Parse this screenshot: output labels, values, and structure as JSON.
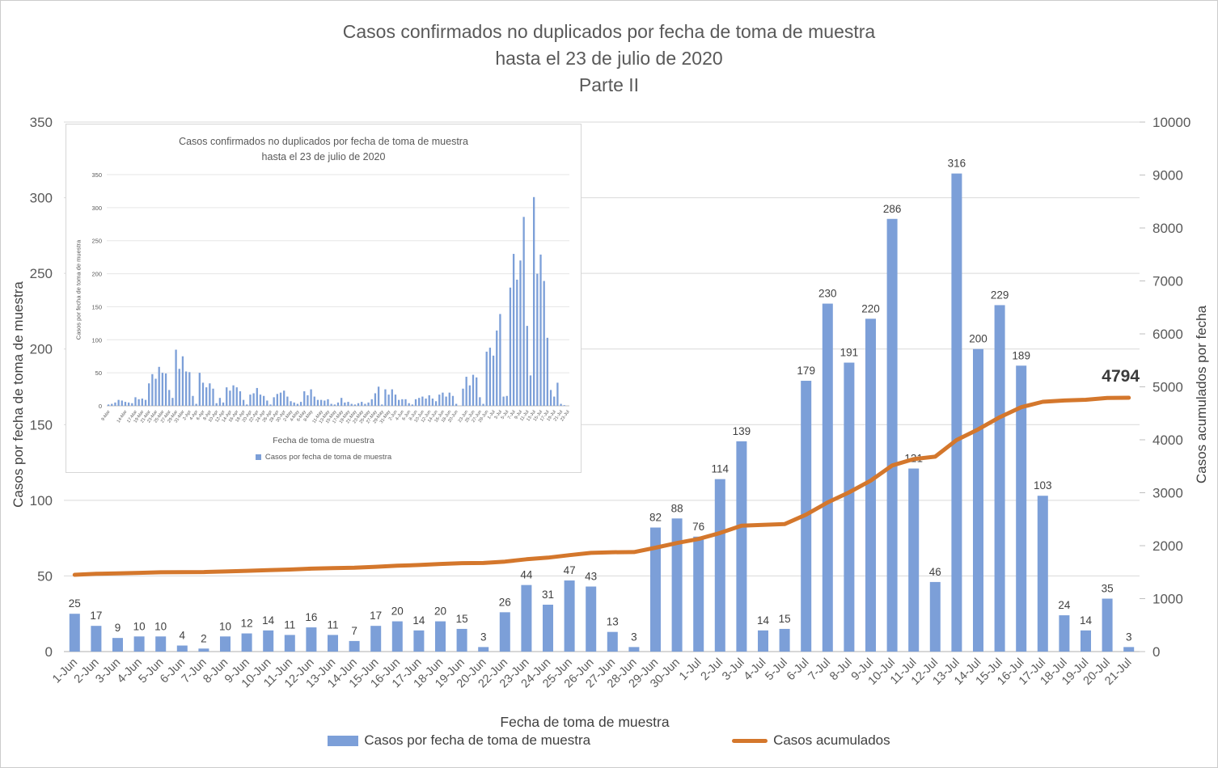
{
  "page": {
    "background": "#ffffff",
    "border_color": "#cccccc"
  },
  "colors": {
    "bar": "#7C9FD8",
    "line": "#D4772C",
    "grid": "#D9D9D9",
    "axis": "#BFBFBF",
    "tick_text": "#595959",
    "data_label": "#404040"
  },
  "chart_data": [
    {
      "id": "main",
      "type": "bar",
      "title_lines": [
        "Casos confirmados no duplicados por fecha de toma de muestra",
        "hasta el 23 de julio de 2020",
        "Parte II"
      ],
      "x_label": "Fecha de toma de muestra",
      "y_left": {
        "label": "Casos por fecha de toma de muestra",
        "min": 0,
        "max": 350,
        "step": 50
      },
      "y_right": {
        "label": "Casos acumulados por fecha",
        "min": 0,
        "max": 10000,
        "step": 1000
      },
      "grid": true,
      "data_labels": true,
      "legend_position": "bottom",
      "categories": [
        "1-Jun",
        "2-Jun",
        "3-Jun",
        "4-Jun",
        "5-Jun",
        "6-Jun",
        "7-Jun",
        "8-Jun",
        "9-Jun",
        "10-Jun",
        "11-Jun",
        "12-Jun",
        "13-Jun",
        "14-Jun",
        "15-Jun",
        "16-Jun",
        "17-Jun",
        "18-Jun",
        "19-Jun",
        "20-Jun",
        "22-Jun",
        "23-Jun",
        "24-Jun",
        "25-Jun",
        "26-Jun",
        "27-Jun",
        "28-Jun",
        "29-Jun",
        "30-Jun",
        "1-Jul",
        "2-Jul",
        "3-Jul",
        "4-Jul",
        "5-Jul",
        "6-Jul",
        "7-Jul",
        "8-Jul",
        "9-Jul",
        "10-Jul",
        "11-Jul",
        "12-Jul",
        "13-Jul",
        "14-Jul",
        "15-Jul",
        "16-Jul",
        "17-Jul",
        "18-Jul",
        "19-Jul",
        "20-Jul",
        "21-Jul"
      ],
      "series": [
        {
          "name": "Casos por fecha de toma de muestra",
          "type": "bar",
          "axis": "left",
          "values": [
            25,
            17,
            9,
            10,
            10,
            4,
            2,
            10,
            12,
            14,
            11,
            16,
            11,
            7,
            17,
            20,
            14,
            20,
            15,
            3,
            26,
            44,
            31,
            47,
            43,
            13,
            3,
            82,
            88,
            76,
            114,
            139,
            14,
            15,
            179,
            230,
            191,
            220,
            286,
            121,
            46,
            316,
            200,
            229,
            189,
            103,
            24,
            14,
            35,
            3
          ]
        },
        {
          "name": "Casos acumulados",
          "type": "line",
          "axis": "right",
          "values": [
            1451,
            1468,
            1477,
            1487,
            1497,
            1501,
            1503,
            1513,
            1525,
            1539,
            1550,
            1566,
            1577,
            1584,
            1601,
            1621,
            1635,
            1655,
            1670,
            1673,
            1699,
            1743,
            1774,
            1821,
            1864,
            1877,
            1880,
            1962,
            2050,
            2126,
            2240,
            2379,
            2393,
            2408,
            2587,
            2817,
            3008,
            3228,
            3514,
            3635,
            3681,
            3997,
            4197,
            4426,
            4615,
            4718,
            4742,
            4756,
            4791,
            4794
          ],
          "end_label": "4794"
        }
      ]
    },
    {
      "id": "inset",
      "type": "bar",
      "title_lines": [
        "Casos confirmados no duplicados por fecha de toma de muestra",
        "hasta el 23 de julio de 2020"
      ],
      "x_label": "Fecha de toma de muestra",
      "y_label": "Casos por fecha de toma de muestra",
      "legend": "Casos por fecha de toma de muestra",
      "y": {
        "min": 0,
        "max": 350,
        "step": 50
      },
      "grid": true,
      "x_tick_labels": [
        "9-Mar",
        "14-Mar",
        "17-Mar",
        "19-Mar",
        "21-Mar",
        "23-Mar",
        "25-Mar",
        "27-Mar",
        "29-Mar",
        "31-Mar",
        "2-Apr",
        "4-Apr",
        "6-Apr",
        "8-Apr",
        "10-Apr",
        "12-Apr",
        "14-Apr",
        "16-Apr",
        "18-Apr",
        "20-Apr",
        "22-Apr",
        "24-Apr",
        "26-Apr",
        "28-Apr",
        "30-Apr",
        "2-May",
        "4-May",
        "6-May",
        "8-May",
        "11-May",
        "13-May",
        "15-May",
        "17-May",
        "19-May",
        "21-May",
        "23-May",
        "25-May",
        "27-May",
        "29-May",
        "31-May",
        "2-Jun",
        "4-Jun",
        "6-Jun",
        "8-Jun",
        "10-Jun",
        "12-Jun",
        "14-Jun",
        "16-Jun",
        "18-Jun",
        "20-Jun",
        "23-Jun",
        "25-Jun",
        "27-Jun",
        "29-Jun",
        "1-Jul",
        "3-Jul",
        "5-Jul",
        "7-Jul",
        "9-Jul",
        "11-Jul",
        "13-Jul",
        "15-Jul",
        "17-Jul",
        "19-Jul",
        "21-Jul",
        "23-Jul"
      ],
      "values": [
        2,
        3,
        5,
        9,
        8,
        6,
        5,
        4,
        13,
        10,
        11,
        9,
        34,
        48,
        41,
        59,
        50,
        49,
        24,
        12,
        85,
        56,
        75,
        52,
        51,
        15,
        3,
        50,
        35,
        28,
        34,
        26,
        4,
        12,
        5,
        28,
        23,
        31,
        28,
        22,
        9,
        2,
        17,
        19,
        27,
        17,
        15,
        8,
        2,
        13,
        18,
        20,
        23,
        14,
        7,
        5,
        3,
        6,
        22,
        16,
        25,
        14,
        9,
        9,
        8,
        10,
        3,
        2,
        5,
        12,
        5,
        6,
        3,
        2,
        4,
        6,
        3,
        5,
        10,
        19,
        29,
        2,
        25,
        17,
        25,
        17,
        9,
        10,
        10,
        4,
        2,
        10,
        12,
        14,
        11,
        16,
        11,
        7,
        17,
        20,
        14,
        20,
        15,
        3,
        0,
        26,
        44,
        31,
        47,
        43,
        13,
        3,
        82,
        88,
        76,
        114,
        139,
        14,
        15,
        179,
        230,
        191,
        220,
        286,
        121,
        46,
        316,
        200,
        229,
        189,
        103,
        24,
        14,
        35,
        3,
        1,
        0
      ]
    }
  ]
}
